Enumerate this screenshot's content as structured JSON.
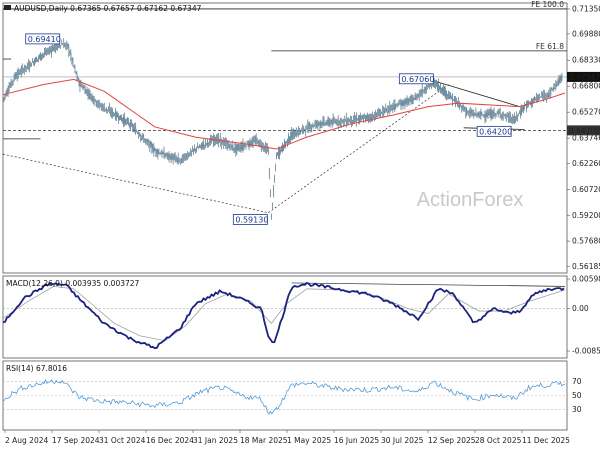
{
  "chart_data": [
    {
      "type": "candlestick",
      "title": "AUDUSD,Daily  0.67365 0.67657 0.67162 0.67347",
      "ylim": [
        0.558,
        0.717
      ],
      "y_ticks": [
        "0.71350",
        "0.69880",
        "0.68330",
        "0.66800",
        "0.65270",
        "0.63746",
        "0.62260",
        "0.60720",
        "0.59200",
        "0.57680",
        "0.56185"
      ],
      "x_ticks": [
        "2 Aug 2024",
        "17 Sep 2024",
        "31 Oct 2024",
        "16 Dec 2024",
        "31 Jan 2025",
        "18 Mar 2025",
        "1 May 2025",
        "16 Jun 2025",
        "30 Jul 2025",
        "12 Sep 2025",
        "28 Oct 2025",
        "11 Dec 2025"
      ],
      "price_path": [
        [
          0,
          0.66
        ],
        [
          12,
          0.674
        ],
        [
          40,
          0.687
        ],
        [
          58,
          0.693
        ],
        [
          64,
          0.6915
        ],
        [
          75,
          0.67
        ],
        [
          95,
          0.657
        ],
        [
          125,
          0.646
        ],
        [
          150,
          0.63
        ],
        [
          175,
          0.624
        ],
        [
          190,
          0.631
        ],
        [
          210,
          0.637
        ],
        [
          230,
          0.631
        ],
        [
          250,
          0.636
        ],
        [
          262,
          0.63
        ],
        [
          265,
          0.5913
        ],
        [
          270,
          0.627
        ],
        [
          285,
          0.639
        ],
        [
          310,
          0.646
        ],
        [
          345,
          0.648
        ],
        [
          365,
          0.65
        ],
        [
          385,
          0.656
        ],
        [
          405,
          0.66
        ],
        [
          425,
          0.6706
        ],
        [
          445,
          0.66
        ],
        [
          460,
          0.652
        ],
        [
          475,
          0.651
        ],
        [
          490,
          0.652
        ],
        [
          505,
          0.648
        ],
        [
          515,
          0.656
        ],
        [
          525,
          0.66
        ],
        [
          540,
          0.664
        ],
        [
          552,
          0.6735
        ]
      ],
      "ma_path": [
        [
          0,
          0.663
        ],
        [
          40,
          0.669
        ],
        [
          70,
          0.672
        ],
        [
          100,
          0.665
        ],
        [
          150,
          0.644
        ],
        [
          190,
          0.638
        ],
        [
          240,
          0.634
        ],
        [
          270,
          0.631
        ],
        [
          300,
          0.638
        ],
        [
          345,
          0.646
        ],
        [
          385,
          0.651
        ],
        [
          420,
          0.656
        ],
        [
          450,
          0.658
        ],
        [
          480,
          0.657
        ],
        [
          510,
          0.656
        ],
        [
          535,
          0.66
        ],
        [
          555,
          0.664
        ]
      ],
      "annotations": [
        {
          "label": "0.69410",
          "x": 58,
          "y": 0.6941
        },
        {
          "label": "0.59130",
          "x": 265,
          "y": 0.5913
        },
        {
          "label": "0.67060",
          "x": 425,
          "y": 0.6706
        },
        {
          "label": "0.64200",
          "x": 490,
          "y": 0.642
        }
      ],
      "last_price": "0.67347",
      "support_level": {
        "label": "0.64200",
        "value": 0.642
      },
      "fib_levels": [
        {
          "label": "FE 100.0",
          "value": 0.7135
        },
        {
          "label": "FE 61.8",
          "value": 0.6888
        }
      ],
      "watermark": "ActionForex"
    },
    {
      "type": "line",
      "title": "MACD(12,26,9) 0.003935 0.003727",
      "ylim": [
        -0.01,
        0.0066
      ],
      "y_ticks": [
        "0.005981",
        "0.00",
        "-0.00859"
      ],
      "macd_path": [
        [
          0,
          -0.003
        ],
        [
          20,
          0.002
        ],
        [
          45,
          0.005
        ],
        [
          62,
          0.0048
        ],
        [
          80,
          0.001
        ],
        [
          100,
          -0.003
        ],
        [
          125,
          -0.006
        ],
        [
          150,
          -0.008
        ],
        [
          175,
          -0.004
        ],
        [
          190,
          0.001
        ],
        [
          215,
          0.0035
        ],
        [
          235,
          0.002
        ],
        [
          255,
          0.0
        ],
        [
          262,
          -0.0055
        ],
        [
          268,
          -0.007
        ],
        [
          285,
          0.0045
        ],
        [
          300,
          0.005
        ],
        [
          330,
          0.004
        ],
        [
          360,
          0.003
        ],
        [
          385,
          0.001
        ],
        [
          410,
          -0.002
        ],
        [
          430,
          0.004
        ],
        [
          445,
          0.003
        ],
        [
          465,
          -0.003
        ],
        [
          485,
          0.0
        ],
        [
          500,
          -0.001
        ],
        [
          510,
          -0.0005
        ],
        [
          525,
          0.003
        ],
        [
          540,
          0.004
        ],
        [
          555,
          0.004
        ]
      ],
      "signal_path": [
        [
          0,
          -0.002
        ],
        [
          25,
          0.0015
        ],
        [
          50,
          0.0045
        ],
        [
          70,
          0.004
        ],
        [
          90,
          0.0005
        ],
        [
          110,
          -0.003
        ],
        [
          135,
          -0.0055
        ],
        [
          160,
          -0.0065
        ],
        [
          180,
          -0.0035
        ],
        [
          200,
          0.001
        ],
        [
          222,
          0.003
        ],
        [
          245,
          0.0015
        ],
        [
          265,
          -0.003
        ],
        [
          280,
          0.001
        ],
        [
          300,
          0.004
        ],
        [
          335,
          0.0038
        ],
        [
          370,
          0.0025
        ],
        [
          400,
          0.0
        ],
        [
          420,
          -0.001
        ],
        [
          440,
          0.003
        ],
        [
          470,
          -0.0005
        ],
        [
          495,
          -0.0005
        ],
        [
          520,
          0.0015
        ],
        [
          555,
          0.0038
        ]
      ]
    },
    {
      "type": "line",
      "title": "RSI(14) 67.8016",
      "ylim": [
        0,
        100
      ],
      "y_ticks": [
        "70",
        "50",
        "30"
      ],
      "rsi_path": [
        [
          0,
          45
        ],
        [
          20,
          62
        ],
        [
          45,
          70
        ],
        [
          58,
          72
        ],
        [
          75,
          48
        ],
        [
          95,
          42
        ],
        [
          120,
          40
        ],
        [
          150,
          35
        ],
        [
          175,
          40
        ],
        [
          195,
          55
        ],
        [
          215,
          62
        ],
        [
          235,
          50
        ],
        [
          255,
          45
        ],
        [
          262,
          25
        ],
        [
          270,
          30
        ],
        [
          285,
          65
        ],
        [
          300,
          68
        ],
        [
          330,
          60
        ],
        [
          360,
          58
        ],
        [
          385,
          62
        ],
        [
          410,
          55
        ],
        [
          425,
          70
        ],
        [
          445,
          55
        ],
        [
          465,
          44
        ],
        [
          485,
          52
        ],
        [
          505,
          45
        ],
        [
          520,
          62
        ],
        [
          535,
          65
        ],
        [
          555,
          68
        ]
      ]
    }
  ]
}
